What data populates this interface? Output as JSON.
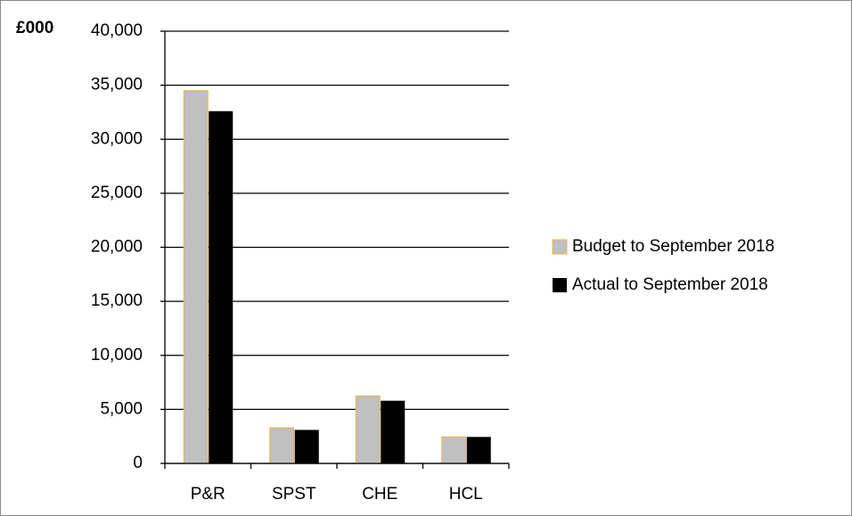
{
  "chart_data": {
    "type": "bar",
    "y_axis_label": "£000",
    "categories": [
      "P&R",
      "SPST",
      "CHE",
      "HCL"
    ],
    "series": [
      {
        "name": "Budget to September 2018",
        "color": "#c0c0c0",
        "edge_color": "#e8b548",
        "values": [
          34500,
          3300,
          6250,
          2450
        ]
      },
      {
        "name": "Actual to September 2018",
        "color": "#000000",
        "values": [
          32600,
          3100,
          5800,
          2450
        ]
      }
    ],
    "ylim": [
      0,
      40000
    ],
    "yticks": [
      0,
      {
        "value": 5000,
        "label": "5,000"
      },
      {
        "value": 10000,
        "label": "10,000"
      },
      {
        "value": 15000,
        "label": "15,000"
      },
      {
        "value": 20000,
        "label": "20,000"
      },
      {
        "value": 25000,
        "label": "25,000"
      },
      {
        "value": 30000,
        "label": "30,000"
      },
      {
        "value": 35000,
        "label": "35,000"
      },
      {
        "value": 40000,
        "label": "40,000"
      }
    ],
    "grid": true,
    "legend": "right"
  }
}
